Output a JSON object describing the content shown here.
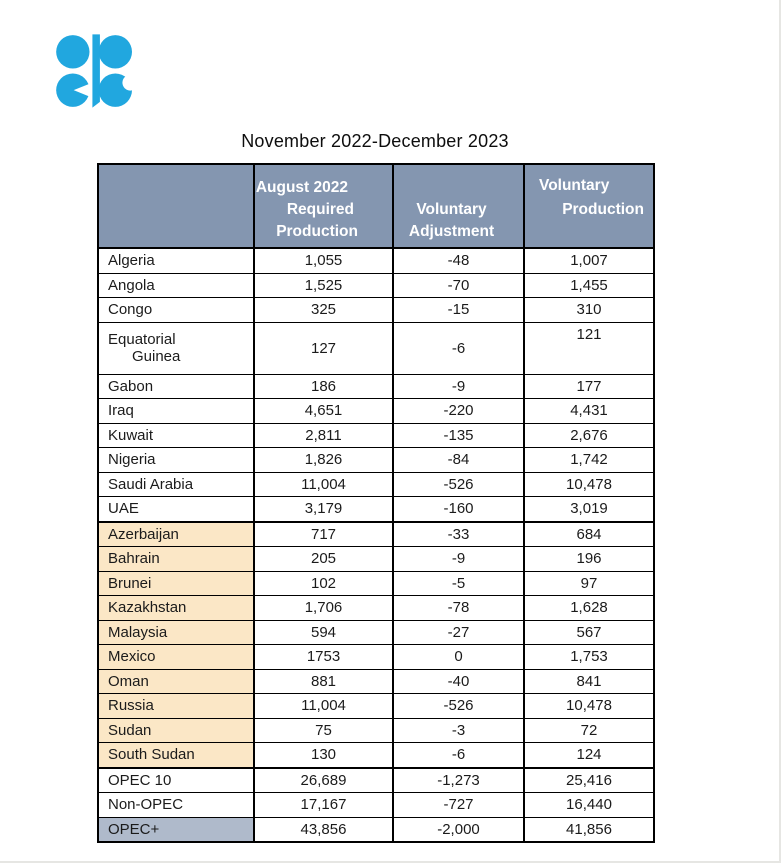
{
  "title": "November 2022-December 2023",
  "logo": {
    "name": "opec-logo",
    "alt": "OPEC"
  },
  "colors": {
    "page_bg": "#FFFFFF",
    "header_bg": "#8496B0",
    "header_text": "#FFFFFF",
    "nonopec_bg": "#FBE7C6",
    "opecplus_bg": "#AFBACB",
    "border": "#000000",
    "logo": "#21A7DF"
  },
  "table": {
    "columns": [
      {
        "key": "country",
        "header_lines": []
      },
      {
        "key": "required",
        "header_lines": [
          "August 2022",
          "Required",
          "Production"
        ]
      },
      {
        "key": "adjustment",
        "header_lines": [
          "Voluntary",
          "Adjustment"
        ]
      },
      {
        "key": "production",
        "header_lines": [
          "Voluntary",
          "Production"
        ]
      }
    ],
    "rows": [
      {
        "country": "Algeria",
        "required": "1,055",
        "adjustment": "-48",
        "production": "1,007",
        "group": "opec"
      },
      {
        "country": "Angola",
        "required": "1,525",
        "adjustment": "-70",
        "production": "1,455",
        "group": "opec"
      },
      {
        "country": "Congo",
        "required": "325",
        "adjustment": "-15",
        "production": "310",
        "group": "opec"
      },
      {
        "country": "Equatorial",
        "country2": "Guinea",
        "required": "127",
        "adjustment": "-6",
        "production": "121",
        "group": "opec",
        "tall": true,
        "production_top": true
      },
      {
        "country": "Gabon",
        "required": "186",
        "adjustment": "-9",
        "production": "177",
        "group": "opec"
      },
      {
        "country": "Iraq",
        "required": "4,651",
        "adjustment": "-220",
        "production": "4,431",
        "group": "opec"
      },
      {
        "country": "Kuwait",
        "required": "2,811",
        "adjustment": "-135",
        "production": "2,676",
        "group": "opec"
      },
      {
        "country": "Nigeria",
        "required": "1,826",
        "adjustment": "-84",
        "production": "1,742",
        "group": "opec"
      },
      {
        "country": "Saudi Arabia",
        "required": "11,004",
        "adjustment": "-526",
        "production": "10,478",
        "group": "opec"
      },
      {
        "country": "UAE",
        "required": "3,179",
        "adjustment": "-160",
        "production": "3,019",
        "group": "opec",
        "thick_bottom": true
      },
      {
        "country": "Azerbaijan",
        "required": "717",
        "adjustment": "-33",
        "production": "684",
        "group": "nonopec"
      },
      {
        "country": "Bahrain",
        "required": "205",
        "adjustment": "-9",
        "production": "196",
        "group": "nonopec"
      },
      {
        "country": "Brunei",
        "required": "102",
        "adjustment": "-5",
        "production": "97",
        "group": "nonopec"
      },
      {
        "country": "Kazakhstan",
        "required": "1,706",
        "adjustment": "-78",
        "production": "1,628",
        "group": "nonopec"
      },
      {
        "country": "Malaysia",
        "required": "594",
        "adjustment": "-27",
        "production": "567",
        "group": "nonopec"
      },
      {
        "country": "Mexico",
        "required": "1753",
        "adjustment": "0",
        "production": "1,753",
        "group": "nonopec"
      },
      {
        "country": "Oman",
        "required": "881",
        "adjustment": "-40",
        "production": "841",
        "group": "nonopec"
      },
      {
        "country": "Russia",
        "required": "11,004",
        "adjustment": "-526",
        "production": "10,478",
        "group": "nonopec"
      },
      {
        "country": "Sudan",
        "required": "75",
        "adjustment": "-3",
        "production": "72",
        "group": "nonopec"
      },
      {
        "country": "South Sudan",
        "required": "130",
        "adjustment": "-6",
        "production": "124",
        "group": "nonopec",
        "thick_bottom": true
      },
      {
        "country": "OPEC 10",
        "required": "26,689",
        "adjustment": "-1,273",
        "production": "25,416",
        "group": "total"
      },
      {
        "country": "Non-OPEC",
        "required": "17,167",
        "adjustment": "-727",
        "production": "16,440",
        "group": "total"
      },
      {
        "country": "OPEC+",
        "required": "43,856",
        "adjustment": "-2,000",
        "production": "41,856",
        "group": "opecplus"
      }
    ]
  },
  "chart_data": {
    "type": "table",
    "title": "November 2022-December 2023",
    "columns": [
      "",
      "August 2022 Required Production",
      "Voluntary Adjustment",
      "Voluntary Production"
    ],
    "rows": [
      [
        "Algeria",
        "1,055",
        "-48",
        "1,007"
      ],
      [
        "Angola",
        "1,525",
        "-70",
        "1,455"
      ],
      [
        "Congo",
        "325",
        "-15",
        "310"
      ],
      [
        "Equatorial Guinea",
        "127",
        "-6",
        "121"
      ],
      [
        "Gabon",
        "186",
        "-9",
        "177"
      ],
      [
        "Iraq",
        "4,651",
        "-220",
        "4,431"
      ],
      [
        "Kuwait",
        "2,811",
        "-135",
        "2,676"
      ],
      [
        "Nigeria",
        "1,826",
        "-84",
        "1,742"
      ],
      [
        "Saudi Arabia",
        "11,004",
        "-526",
        "10,478"
      ],
      [
        "UAE",
        "3,179",
        "-160",
        "3,019"
      ],
      [
        "Azerbaijan",
        "717",
        "-33",
        "684"
      ],
      [
        "Bahrain",
        "205",
        "-9",
        "196"
      ],
      [
        "Brunei",
        "102",
        "-5",
        "97"
      ],
      [
        "Kazakhstan",
        "1,706",
        "-78",
        "1,628"
      ],
      [
        "Malaysia",
        "594",
        "-27",
        "567"
      ],
      [
        "Mexico",
        "1753",
        "0",
        "1,753"
      ],
      [
        "Oman",
        "881",
        "-40",
        "841"
      ],
      [
        "Russia",
        "11,004",
        "-526",
        "10,478"
      ],
      [
        "Sudan",
        "75",
        "-3",
        "72"
      ],
      [
        "South Sudan",
        "130",
        "-6",
        "124"
      ],
      [
        "OPEC 10",
        "26,689",
        "-1,273",
        "25,416"
      ],
      [
        "Non-OPEC",
        "17,167",
        "-727",
        "16,440"
      ],
      [
        "OPEC+",
        "43,856",
        "-2,000",
        "41,856"
      ]
    ]
  }
}
